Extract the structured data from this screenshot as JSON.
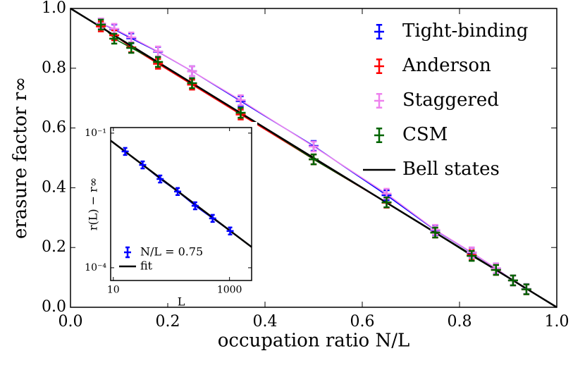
{
  "chart_data": [
    {
      "type": "line",
      "xlabel": "occupation ratio N/L",
      "ylabel": "erasure factor r∞",
      "xlim": [
        0,
        1
      ],
      "ylim": [
        0,
        1
      ],
      "xticks": [
        {
          "value": 0,
          "label": "0.0"
        },
        {
          "value": 0.2,
          "label": "0.2"
        },
        {
          "value": 0.4,
          "label": "0.4"
        },
        {
          "value": 0.6,
          "label": "0.6"
        },
        {
          "value": 0.8,
          "label": "0.8"
        },
        {
          "value": 1,
          "label": "1.0"
        }
      ],
      "yticks": [
        {
          "value": 0,
          "label": "0.0"
        },
        {
          "value": 0.2,
          "label": "0.2"
        },
        {
          "value": 0.4,
          "label": "0.4"
        },
        {
          "value": 0.6,
          "label": "0.6"
        },
        {
          "value": 0.8,
          "label": "0.8"
        },
        {
          "value": 1,
          "label": "1.0"
        }
      ],
      "legend": "upper right",
      "series": [
        {
          "name": "Tight-binding",
          "color": "#0000ff",
          "markers": true,
          "x": [
            0.0625,
            0.09,
            0.125,
            0.18,
            0.25,
            0.35,
            0.5,
            0.65,
            0.75,
            0.825,
            0.875,
            0.91,
            0.9375
          ],
          "values": [
            0.95,
            0.93,
            0.9,
            0.855,
            0.79,
            0.69,
            0.54,
            0.375,
            0.258,
            0.183,
            0.13,
            0.09,
            0.061
          ]
        },
        {
          "name": "Anderson",
          "color": "#ff0000",
          "markers": true,
          "x": [
            0.0625,
            0.09,
            0.125,
            0.18,
            0.25,
            0.35,
            0.5,
            0.65,
            0.75,
            0.825,
            0.875,
            0.91,
            0.9375
          ],
          "values": [
            0.94,
            0.91,
            0.87,
            0.815,
            0.745,
            0.645,
            0.495,
            0.35,
            0.25,
            0.175,
            0.125,
            0.09,
            0.06
          ]
        },
        {
          "name": "Staggered",
          "color": "#ee82ee",
          "markers": true,
          "x": [
            0.0625,
            0.09,
            0.125,
            0.18,
            0.25,
            0.35,
            0.5,
            0.65,
            0.75,
            0.825,
            0.875,
            0.91,
            0.9375
          ],
          "values": [
            0.95,
            0.932,
            0.903,
            0.856,
            0.79,
            0.693,
            0.538,
            0.38,
            0.259,
            0.184,
            0.13,
            0.09,
            0.061
          ]
        },
        {
          "name": "CSM",
          "color": "#006400",
          "markers": true,
          "x": [
            0.0625,
            0.09,
            0.125,
            0.18,
            0.25,
            0.35,
            0.5,
            0.65,
            0.75,
            0.825,
            0.875,
            0.91,
            0.9375
          ],
          "values": [
            0.946,
            0.899,
            0.868,
            0.821,
            0.75,
            0.651,
            0.495,
            0.351,
            0.25,
            0.172,
            0.125,
            0.09,
            0.06
          ]
        },
        {
          "name": "Bell states",
          "color": "#000000",
          "markers": false,
          "x": [
            0,
            1
          ],
          "values": [
            1,
            0
          ]
        }
      ]
    },
    {
      "type": "line",
      "xlabel": "L",
      "ylabel": "r(L) − r∞",
      "xscale": "log",
      "yscale": "log",
      "xlim": [
        9,
        2400
      ],
      "ylim": [
        5.2e-05,
        0.133
      ],
      "xticks": [
        10,
        1000
      ],
      "yticks": [
        {
          "value": 0.1,
          "label": "10⁻¹"
        },
        {
          "value": 0.0001,
          "label": "10⁻⁴"
        }
      ],
      "legend": "lower left",
      "series": [
        {
          "name": "N/L = 0.75",
          "color": "#0000ff",
          "markers": true,
          "x": [
            16,
            32,
            64,
            128,
            256,
            512,
            1024
          ],
          "values": [
            0.039,
            0.0196,
            0.0095,
            0.005,
            0.0024,
            0.00126,
            0.00066
          ]
        },
        {
          "name": "fit",
          "color": "#000000",
          "markers": false,
          "x": [
            9,
            2400
          ],
          "values": [
            0.068,
            0.00029
          ]
        }
      ]
    }
  ]
}
